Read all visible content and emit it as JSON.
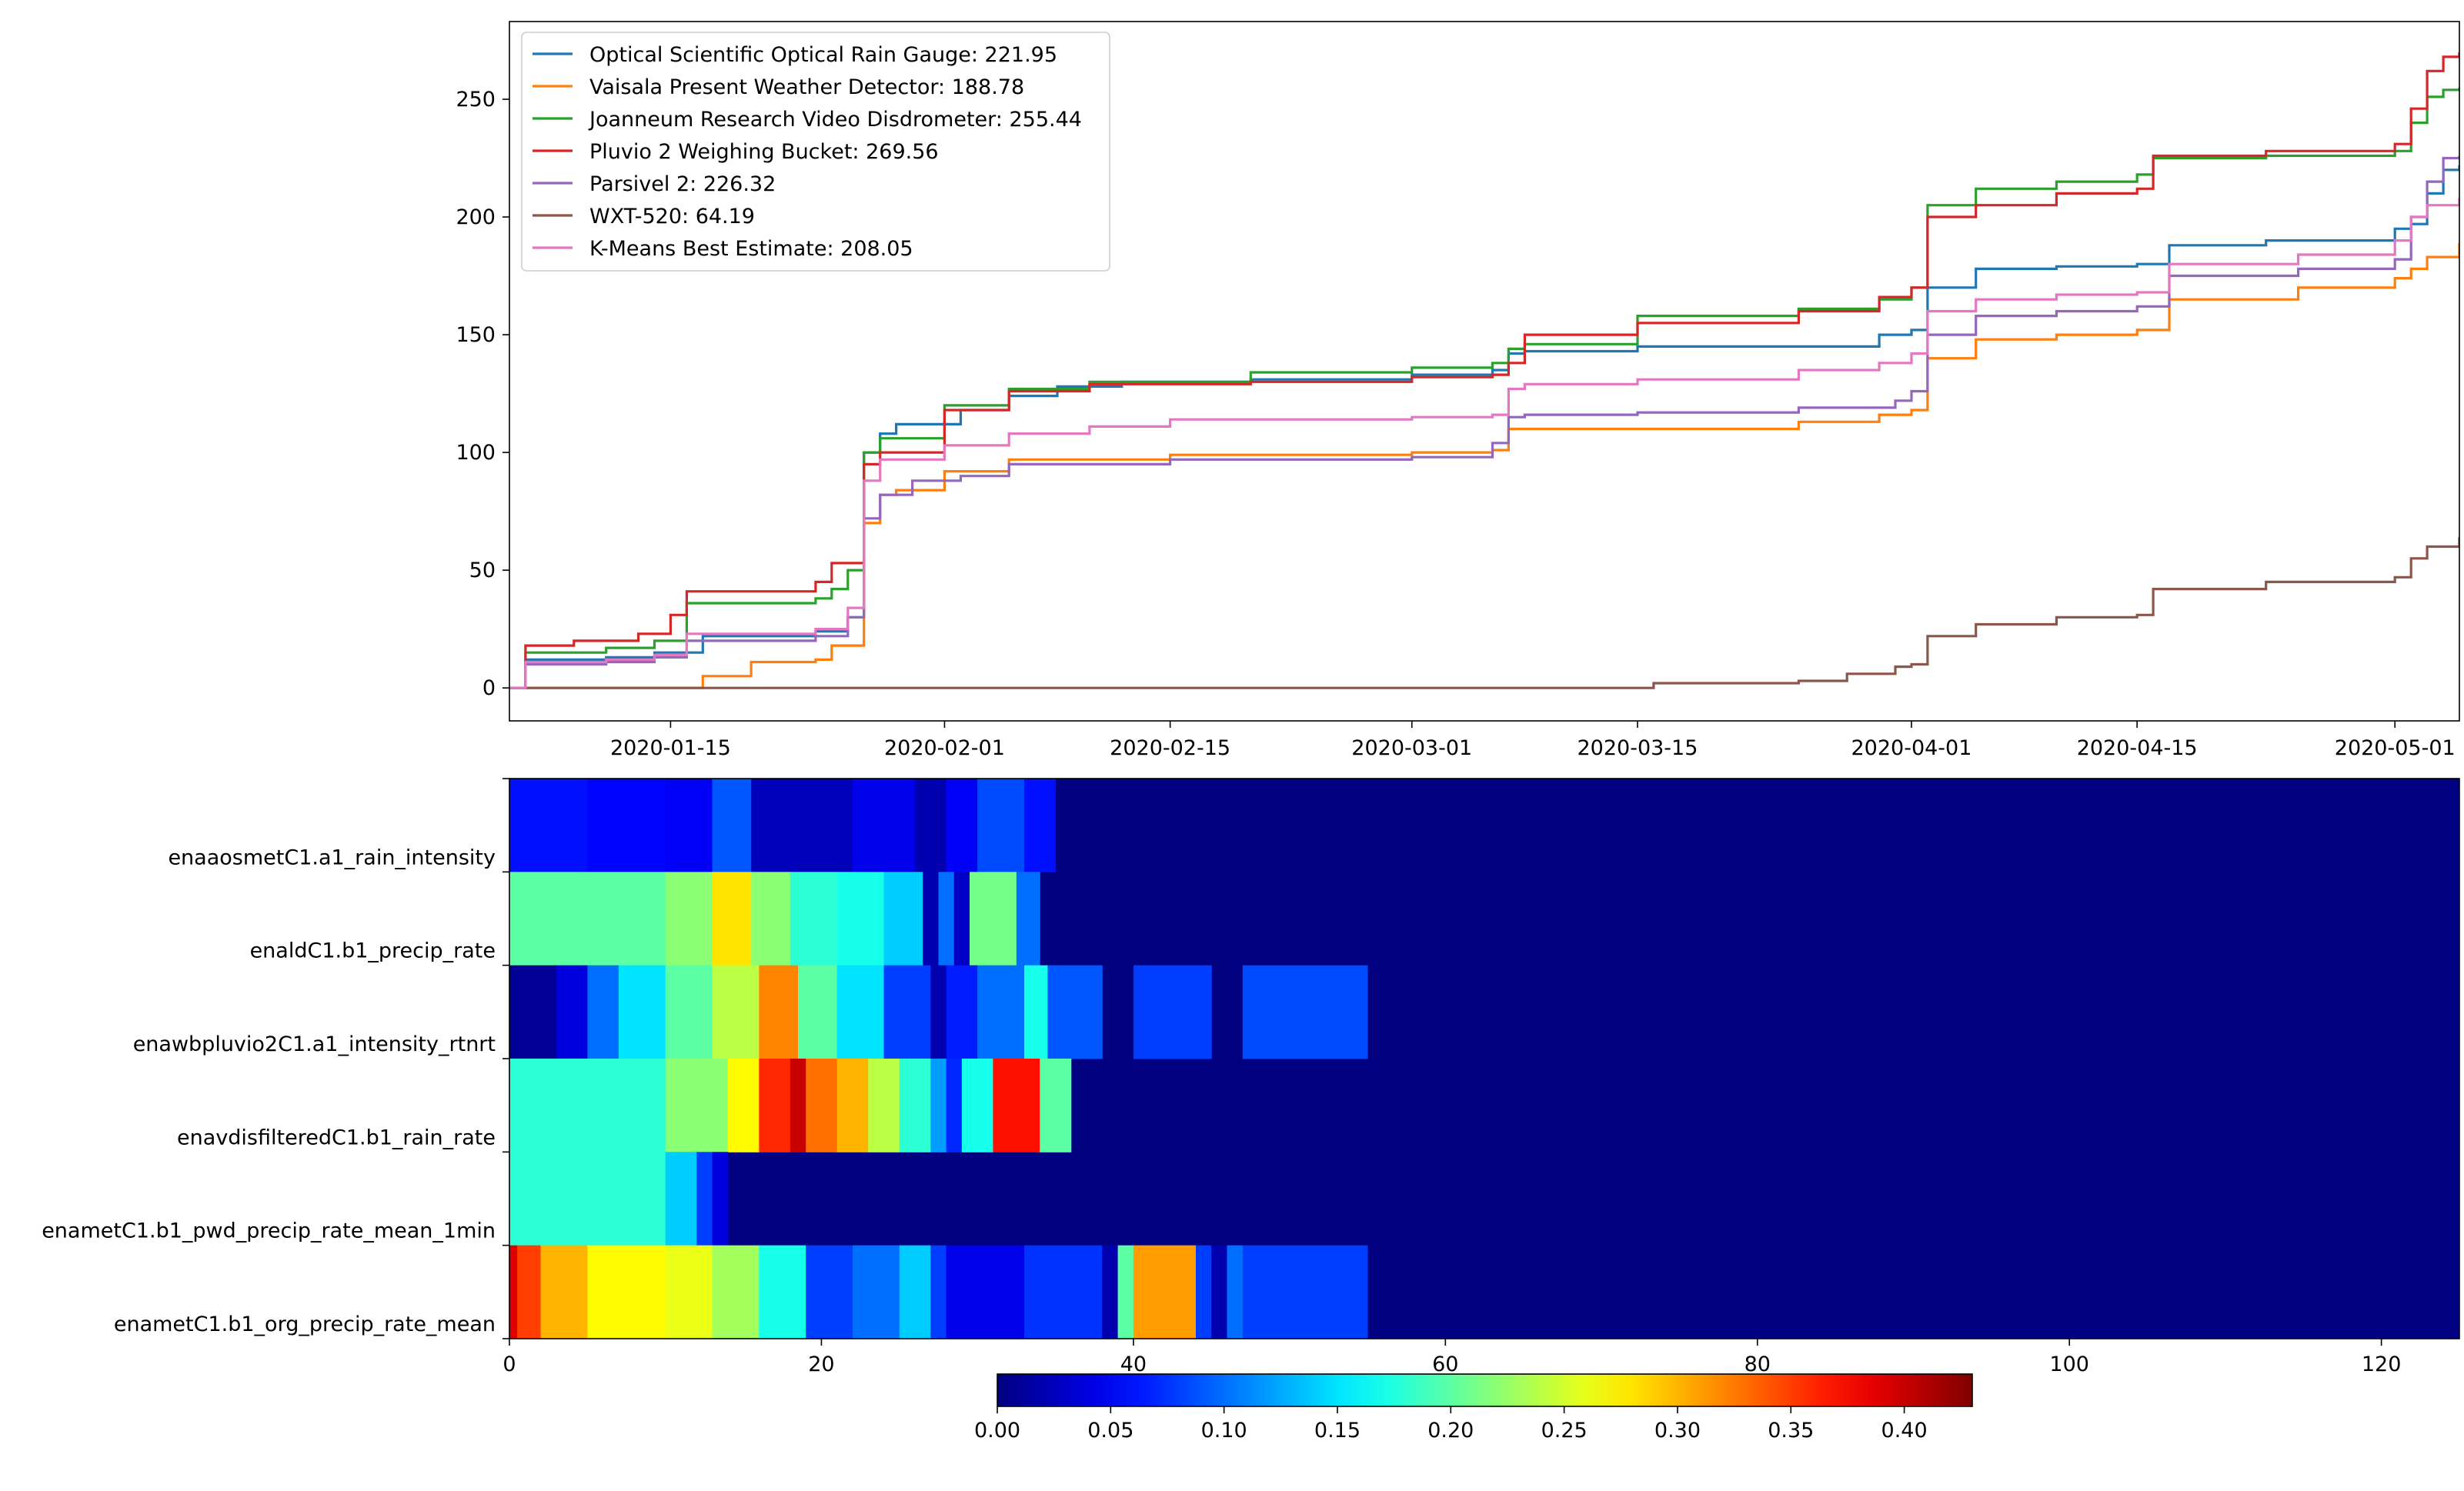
{
  "chart_data": [
    {
      "type": "line",
      "title": "",
      "xlabel": "",
      "ylabel": "",
      "x_is_date": true,
      "xlim": [
        "2020-01-05",
        "2020-05-05"
      ],
      "ylim": [
        -14,
        283
      ],
      "x_ticks": [
        "2020-01-15",
        "2020-02-01",
        "2020-02-15",
        "2020-03-01",
        "2020-03-15",
        "2020-04-01",
        "2020-04-15",
        "2020-05-01"
      ],
      "y_ticks": [
        0,
        50,
        100,
        150,
        200,
        250
      ],
      "grid": false,
      "legend_position": "top-left",
      "series": [
        {
          "name": "Optical Scientific Optical Rain Gauge: 221.95",
          "color": "#1f77b4",
          "x": [
            "2020-01-05",
            "2020-01-06",
            "2020-01-11",
            "2020-01-14",
            "2020-01-17",
            "2020-01-24",
            "2020-01-26",
            "2020-01-27",
            "2020-01-28",
            "2020-01-29",
            "2020-02-02",
            "2020-02-05",
            "2020-02-08",
            "2020-02-12",
            "2020-02-20",
            "2020-03-01",
            "2020-03-06",
            "2020-03-07",
            "2020-03-08",
            "2020-03-15",
            "2020-03-30",
            "2020-04-01",
            "2020-04-02",
            "2020-04-05",
            "2020-04-10",
            "2020-04-15",
            "2020-04-17",
            "2020-04-23",
            "2020-05-01",
            "2020-05-02",
            "2020-05-03",
            "2020-05-04",
            "2020-05-05"
          ],
          "y": [
            0,
            12,
            13,
            15,
            22,
            24,
            30,
            100,
            108,
            112,
            118,
            124,
            128,
            130,
            131,
            133,
            135,
            142,
            143,
            145,
            150,
            152,
            170,
            178,
            179,
            180,
            188,
            190,
            195,
            197,
            210,
            220,
            222
          ]
        },
        {
          "name": "Vaisala Present Weather Detector: 188.78",
          "color": "#ff7f0e",
          "x": [
            "2020-01-05",
            "2020-01-15",
            "2020-01-17",
            "2020-01-20",
            "2020-01-24",
            "2020-01-25",
            "2020-01-27",
            "2020-01-28",
            "2020-01-29",
            "2020-02-01",
            "2020-02-05",
            "2020-02-15",
            "2020-03-01",
            "2020-03-06",
            "2020-03-07",
            "2020-03-15",
            "2020-03-25",
            "2020-03-30",
            "2020-04-01",
            "2020-04-02",
            "2020-04-05",
            "2020-04-10",
            "2020-04-15",
            "2020-04-17",
            "2020-04-25",
            "2020-05-01",
            "2020-05-02",
            "2020-05-03",
            "2020-05-05"
          ],
          "y": [
            0,
            0,
            5,
            11,
            12,
            18,
            70,
            82,
            84,
            92,
            97,
            99,
            100,
            101,
            110,
            110,
            113,
            116,
            118,
            140,
            148,
            150,
            152,
            165,
            170,
            174,
            178,
            183,
            189
          ]
        },
        {
          "name": "Joanneum Research Video Disdrometer: 255.44",
          "color": "#2ca02c",
          "x": [
            "2020-01-05",
            "2020-01-06",
            "2020-01-11",
            "2020-01-14",
            "2020-01-16",
            "2020-01-24",
            "2020-01-25",
            "2020-01-26",
            "2020-01-27",
            "2020-01-28",
            "2020-02-01",
            "2020-02-05",
            "2020-02-10",
            "2020-02-20",
            "2020-03-01",
            "2020-03-06",
            "2020-03-07",
            "2020-03-08",
            "2020-03-15",
            "2020-03-25",
            "2020-03-30",
            "2020-04-01",
            "2020-04-02",
            "2020-04-05",
            "2020-04-10",
            "2020-04-15",
            "2020-04-16",
            "2020-04-23",
            "2020-05-01",
            "2020-05-02",
            "2020-05-03",
            "2020-05-04",
            "2020-05-05"
          ],
          "y": [
            0,
            15,
            17,
            20,
            36,
            38,
            42,
            50,
            100,
            106,
            120,
            127,
            130,
            134,
            136,
            138,
            144,
            146,
            158,
            161,
            165,
            170,
            205,
            212,
            215,
            218,
            225,
            226,
            228,
            240,
            251,
            254,
            255
          ]
        },
        {
          "name": "Pluvio 2 Weighing Bucket: 269.56",
          "color": "#d62728",
          "x": [
            "2020-01-05",
            "2020-01-06",
            "2020-01-09",
            "2020-01-13",
            "2020-01-15",
            "2020-01-16",
            "2020-01-24",
            "2020-01-25",
            "2020-01-27",
            "2020-01-28",
            "2020-02-01",
            "2020-02-05",
            "2020-02-10",
            "2020-02-20",
            "2020-03-01",
            "2020-03-06",
            "2020-03-07",
            "2020-03-08",
            "2020-03-15",
            "2020-03-25",
            "2020-03-30",
            "2020-04-01",
            "2020-04-02",
            "2020-04-05",
            "2020-04-10",
            "2020-04-15",
            "2020-04-16",
            "2020-04-23",
            "2020-05-01",
            "2020-05-02",
            "2020-05-03",
            "2020-05-04",
            "2020-05-05"
          ],
          "y": [
            0,
            18,
            20,
            23,
            31,
            41,
            45,
            53,
            95,
            100,
            118,
            126,
            129,
            130,
            132,
            133,
            138,
            150,
            155,
            160,
            166,
            170,
            200,
            205,
            210,
            212,
            226,
            228,
            231,
            246,
            262,
            268,
            270
          ]
        },
        {
          "name": "Parsivel 2: 226.32",
          "color": "#9467bd",
          "x": [
            "2020-01-05",
            "2020-01-06",
            "2020-01-11",
            "2020-01-14",
            "2020-01-16",
            "2020-01-24",
            "2020-01-26",
            "2020-01-27",
            "2020-01-28",
            "2020-01-30",
            "2020-02-02",
            "2020-02-05",
            "2020-02-15",
            "2020-03-01",
            "2020-03-06",
            "2020-03-07",
            "2020-03-08",
            "2020-03-15",
            "2020-03-25",
            "2020-03-31",
            "2020-04-01",
            "2020-04-02",
            "2020-04-05",
            "2020-04-10",
            "2020-04-15",
            "2020-04-17",
            "2020-04-25",
            "2020-05-01",
            "2020-05-02",
            "2020-05-03",
            "2020-05-04",
            "2020-05-05"
          ],
          "y": [
            0,
            10,
            11,
            13,
            20,
            22,
            30,
            72,
            82,
            88,
            90,
            95,
            97,
            98,
            104,
            115,
            116,
            117,
            119,
            122,
            126,
            150,
            158,
            160,
            162,
            175,
            178,
            182,
            200,
            215,
            225,
            226
          ]
        },
        {
          "name": "WXT-520: 64.19",
          "color": "#8c564b",
          "x": [
            "2020-01-05",
            "2020-03-15",
            "2020-03-16",
            "2020-03-25",
            "2020-03-28",
            "2020-03-31",
            "2020-04-01",
            "2020-04-02",
            "2020-04-05",
            "2020-04-10",
            "2020-04-15",
            "2020-04-16",
            "2020-04-23",
            "2020-05-01",
            "2020-05-02",
            "2020-05-03",
            "2020-05-05"
          ],
          "y": [
            0,
            0,
            2,
            3,
            6,
            9,
            10,
            22,
            27,
            30,
            31,
            42,
            45,
            47,
            55,
            60,
            64
          ]
        },
        {
          "name": "K-Means Best Estimate: 208.05",
          "color": "#e377c2",
          "x": [
            "2020-01-05",
            "2020-01-06",
            "2020-01-11",
            "2020-01-14",
            "2020-01-16",
            "2020-01-24",
            "2020-01-26",
            "2020-01-27",
            "2020-01-28",
            "2020-02-01",
            "2020-02-05",
            "2020-02-10",
            "2020-02-15",
            "2020-03-01",
            "2020-03-06",
            "2020-03-07",
            "2020-03-08",
            "2020-03-15",
            "2020-03-25",
            "2020-03-30",
            "2020-04-01",
            "2020-04-02",
            "2020-04-05",
            "2020-04-10",
            "2020-04-15",
            "2020-04-17",
            "2020-04-25",
            "2020-05-01",
            "2020-05-02",
            "2020-05-03",
            "2020-05-05"
          ],
          "y": [
            0,
            11,
            12,
            14,
            23,
            25,
            34,
            88,
            97,
            103,
            108,
            111,
            114,
            115,
            116,
            127,
            129,
            131,
            135,
            138,
            142,
            160,
            165,
            167,
            168,
            180,
            184,
            190,
            200,
            205,
            208
          ]
        }
      ]
    },
    {
      "type": "heatmap",
      "title": "",
      "xlabel": "",
      "ylabel": "",
      "xlim": [
        0,
        125
      ],
      "x_ticks": [
        0,
        20,
        40,
        60,
        80,
        100,
        120
      ],
      "grid": false,
      "colormap": "jet",
      "colorbar": {
        "min": 0,
        "max": 0.43,
        "ticks": [
          "0.00",
          "0.05",
          "0.10",
          "0.15",
          "0.20",
          "0.25",
          "0.30",
          "0.35",
          "0.40"
        ],
        "position": "bottom"
      },
      "rows": [
        {
          "label": "enaaosmetC1.a1_rain_intensity",
          "segments": [
            [
              0,
              5,
              0.06
            ],
            [
              5,
              10,
              0.055
            ],
            [
              10,
              13,
              0.05
            ],
            [
              13,
              15.5,
              0.09
            ],
            [
              15.5,
              22,
              0.025
            ],
            [
              22,
              26,
              0.045
            ],
            [
              26,
              28,
              0.02
            ],
            [
              28,
              30,
              0.05
            ],
            [
              30,
              33,
              0.085
            ],
            [
              33,
              35,
              0.06
            ]
          ]
        },
        {
          "label": "enaldC1.b1_precip_rate",
          "segments": [
            [
              0,
              10,
              0.2
            ],
            [
              10,
              13,
              0.22
            ],
            [
              13,
              15.5,
              0.28
            ],
            [
              15.5,
              18,
              0.22
            ],
            [
              18,
              21,
              0.18
            ],
            [
              21,
              24,
              0.17
            ],
            [
              24,
              26.5,
              0.14
            ],
            [
              26.5,
              27.5,
              0.02
            ],
            [
              27.5,
              28.5,
              0.1
            ],
            [
              28.5,
              29.5,
              0.03
            ],
            [
              29.5,
              32.5,
              0.21
            ],
            [
              32.5,
              34,
              0.1
            ]
          ]
        },
        {
          "label": "enawbpluvio2C1.a1_intensity_rtnrt",
          "segments": [
            [
              0,
              3,
              0.01
            ],
            [
              3,
              5,
              0.04
            ],
            [
              5,
              7,
              0.1
            ],
            [
              7,
              10,
              0.15
            ],
            [
              10,
              13,
              0.2
            ],
            [
              13,
              16,
              0.24
            ],
            [
              16,
              18.5,
              0.32
            ],
            [
              18.5,
              21,
              0.2
            ],
            [
              21,
              24,
              0.15
            ],
            [
              24,
              27,
              0.08
            ],
            [
              27,
              28,
              0.02
            ],
            [
              28,
              30,
              0.065
            ],
            [
              30,
              33,
              0.1
            ],
            [
              33,
              34.5,
              0.17
            ],
            [
              34.5,
              38,
              0.09
            ],
            [
              40,
              45,
              0.08
            ],
            [
              47,
              55,
              0.085
            ]
          ]
        },
        {
          "label": "enavdisfilteredC1.b1_rain_rate",
          "segments": [
            [
              0,
              10,
              0.18
            ],
            [
              10,
              14,
              0.22
            ],
            [
              14,
              16,
              0.27
            ],
            [
              16,
              18,
              0.36
            ],
            [
              18,
              19,
              0.4
            ],
            [
              19,
              21,
              0.33
            ],
            [
              21,
              23,
              0.3
            ],
            [
              23,
              25,
              0.24
            ],
            [
              25,
              27,
              0.18
            ],
            [
              27,
              28,
              0.12
            ],
            [
              28,
              29,
              0.07
            ],
            [
              29,
              31,
              0.17
            ],
            [
              31,
              34,
              0.37
            ],
            [
              34,
              36,
              0.2
            ]
          ]
        },
        {
          "label": "enametC1.b1_pwd_precip_rate_mean_1min",
          "segments": [
            [
              0,
              10,
              0.18
            ],
            [
              10,
              12,
              0.14
            ],
            [
              12,
              13,
              0.08
            ],
            [
              13,
              14,
              0.04
            ]
          ]
        },
        {
          "label": "enametC1.b1_org_precip_rate_mean",
          "segments": [
            [
              0,
              0.5,
              0.39
            ],
            [
              0.5,
              2,
              0.35
            ],
            [
              2,
              5,
              0.3
            ],
            [
              5,
              10,
              0.27
            ],
            [
              10,
              13,
              0.26
            ],
            [
              13,
              16,
              0.23
            ],
            [
              16,
              19,
              0.17
            ],
            [
              19,
              22,
              0.08
            ],
            [
              22,
              25,
              0.1
            ],
            [
              25,
              27,
              0.14
            ],
            [
              27,
              28,
              0.08
            ],
            [
              28,
              33,
              0.045
            ],
            [
              33,
              38,
              0.075
            ],
            [
              38,
              39,
              0.02
            ],
            [
              39,
              40,
              0.2
            ],
            [
              40,
              44,
              0.31
            ],
            [
              44,
              45,
              0.08
            ],
            [
              45,
              46,
              0.02
            ],
            [
              46,
              47,
              0.1
            ],
            [
              47,
              55,
              0.08
            ]
          ]
        }
      ]
    }
  ]
}
